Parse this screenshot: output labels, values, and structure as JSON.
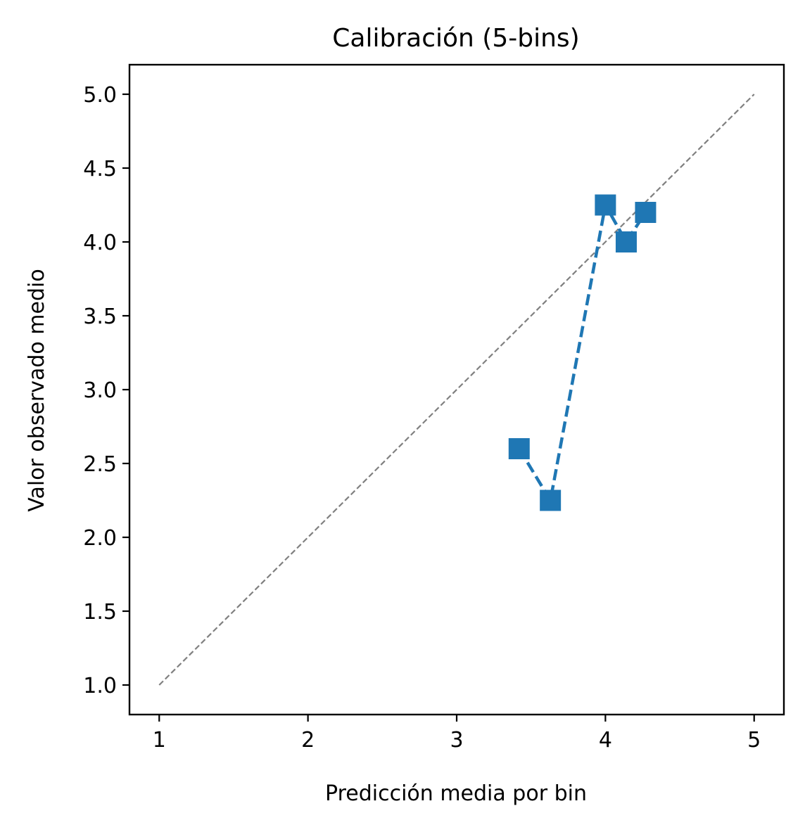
{
  "chart_data": {
    "type": "line",
    "title": "Calibración (5-bins)",
    "xlabel": "Predicción media por bin",
    "ylabel": "Valor observado medio",
    "xlim": [
      0.8,
      5.2
    ],
    "ylim": [
      0.8,
      5.2
    ],
    "x_ticks": [
      1,
      2,
      3,
      4,
      5
    ],
    "x_tick_labels": [
      "1",
      "2",
      "3",
      "4",
      "5"
    ],
    "y_ticks": [
      1.0,
      1.5,
      2.0,
      2.5,
      3.0,
      3.5,
      4.0,
      4.5,
      5.0
    ],
    "y_tick_labels": [
      "1.0",
      "1.5",
      "2.0",
      "2.5",
      "3.0",
      "3.5",
      "4.0",
      "4.5",
      "5.0"
    ],
    "grid": false,
    "reference_line": {
      "x": [
        1,
        5
      ],
      "y": [
        1,
        5
      ],
      "color": "#808080",
      "style": "dashed"
    },
    "series": [
      {
        "x": [
          3.42,
          3.63,
          4.0,
          4.14,
          4.27
        ],
        "y": [
          2.6,
          2.25,
          4.25,
          4.0,
          4.2
        ],
        "color": "#1f77b4",
        "marker": "square",
        "line_style": "dashed"
      }
    ]
  }
}
